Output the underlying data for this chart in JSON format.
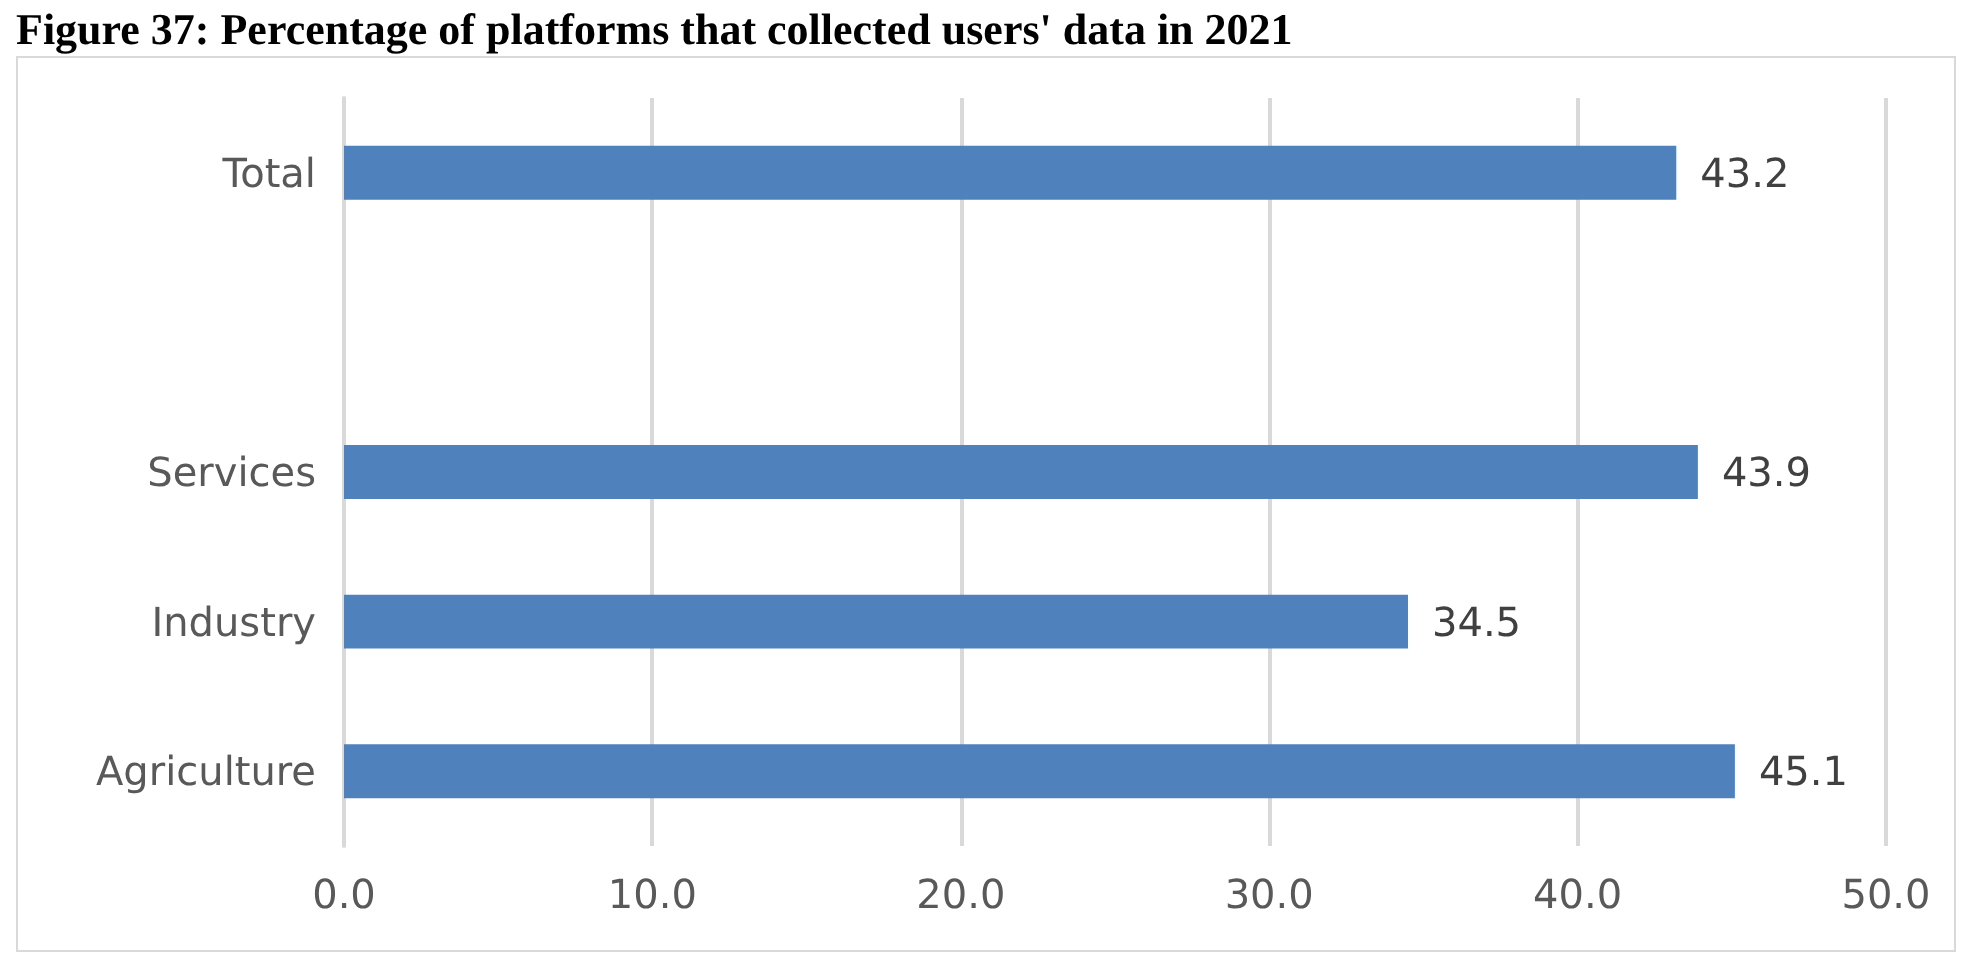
{
  "chart_data": {
    "type": "bar",
    "orientation": "horizontal",
    "title": "Figure 37: Percentage of platforms that collected users' data in 2021",
    "categories": [
      "Total",
      null,
      "Services",
      "Industry",
      "Agriculture"
    ],
    "values": [
      43.2,
      null,
      43.9,
      34.5,
      45.1
    ],
    "color": "#4f81bd",
    "xlim": [
      0,
      50
    ],
    "xticks": [
      {
        "value": 0,
        "label": "0.0"
      },
      {
        "value": 10,
        "label": "10.0"
      },
      {
        "value": 20,
        "label": "20.0"
      },
      {
        "value": 30,
        "label": "30.0"
      },
      {
        "value": 40,
        "label": "40.0"
      },
      {
        "value": 50,
        "label": "50.0"
      }
    ],
    "grid": "x",
    "data_labels": true
  }
}
